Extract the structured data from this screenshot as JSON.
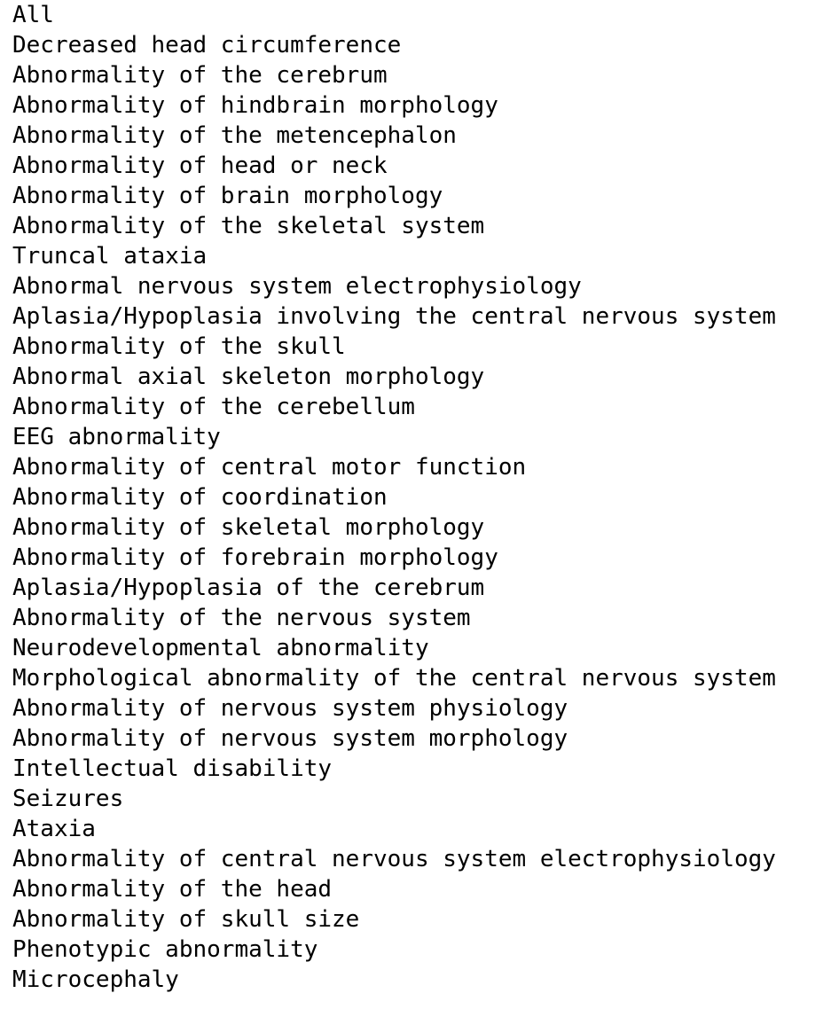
{
  "lines": [
    "All",
    "Decreased head circumference",
    "Abnormality of the cerebrum",
    "Abnormality of hindbrain morphology",
    "Abnormality of the metencephalon",
    "Abnormality of head or neck",
    "Abnormality of brain morphology",
    "Abnormality of the skeletal system",
    "Truncal ataxia",
    "Abnormal nervous system electrophysiology",
    "Aplasia/Hypoplasia involving the central nervous system",
    "Abnormality of the skull",
    "Abnormal axial skeleton morphology",
    "Abnormality of the cerebellum",
    "EEG abnormality",
    "Abnormality of central motor function",
    "Abnormality of coordination",
    "Abnormality of skeletal morphology",
    "Abnormality of forebrain morphology",
    "Aplasia/Hypoplasia of the cerebrum",
    "Abnormality of the nervous system",
    "Neurodevelopmental abnormality",
    "Morphological abnormality of the central nervous system",
    "Abnormality of nervous system physiology",
    "Abnormality of nervous system morphology",
    "Intellectual disability",
    "Seizures",
    "Ataxia",
    "Abnormality of central nervous system electrophysiology",
    "Abnormality of the head",
    "Abnormality of skull size",
    "Phenotypic abnormality",
    "Microcephaly"
  ]
}
